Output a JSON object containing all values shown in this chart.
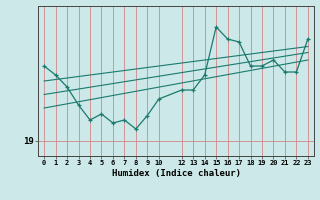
{
  "xlabel": "Humidex (Indice chaleur)",
  "background_color": "#cce8e8",
  "line_color": "#1a7a6e",
  "grid_color": "#d08888",
  "xticks": [
    0,
    1,
    2,
    3,
    4,
    5,
    6,
    7,
    8,
    9,
    10,
    12,
    13,
    14,
    15,
    16,
    17,
    18,
    19,
    20,
    21,
    22,
    23
  ],
  "ytick_label": "19",
  "ytick_value": 19,
  "series_x": [
    0,
    1,
    2,
    3,
    4,
    5,
    6,
    7,
    8,
    9,
    10,
    12,
    13,
    14,
    15,
    16,
    17,
    18,
    19,
    20,
    21,
    22,
    23
  ],
  "series_y": [
    21.5,
    21.2,
    20.8,
    20.2,
    19.7,
    19.9,
    19.6,
    19.7,
    19.4,
    19.85,
    20.4,
    20.7,
    20.7,
    21.2,
    22.8,
    22.4,
    22.3,
    21.5,
    21.5,
    21.7,
    21.3,
    21.3,
    22.4
  ],
  "trend_series": [
    {
      "x": [
        0,
        23
      ],
      "y": [
        21.0,
        22.15
      ]
    },
    {
      "x": [
        0,
        23
      ],
      "y": [
        20.55,
        21.95
      ]
    },
    {
      "x": [
        0,
        23
      ],
      "y": [
        20.1,
        21.7
      ]
    }
  ],
  "xlim": [
    -0.5,
    23.5
  ],
  "ylim": [
    18.5,
    23.5
  ]
}
